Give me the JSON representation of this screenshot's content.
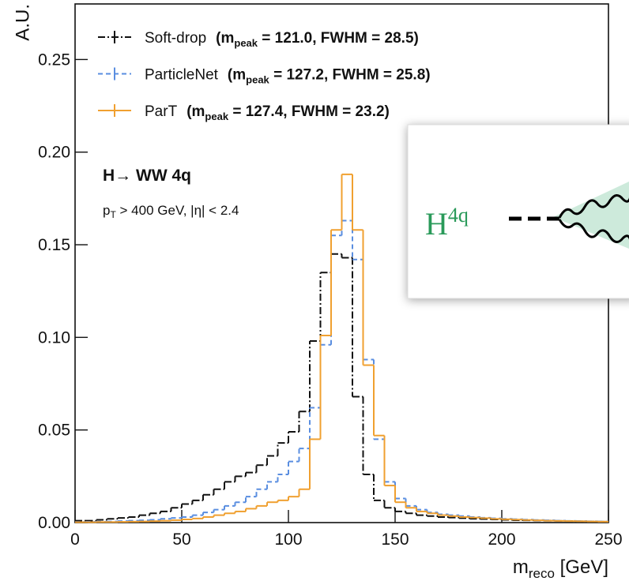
{
  "chart_data": {
    "type": "step-histogram",
    "ylabel": "A.U.",
    "xlabel": {
      "text": "m",
      "sub": "reco",
      "rest": " [GeV]"
    },
    "bins": [
      0,
      5,
      10,
      15,
      20,
      25,
      30,
      35,
      40,
      45,
      50,
      55,
      60,
      65,
      70,
      75,
      80,
      85,
      90,
      95,
      100,
      105,
      110,
      115,
      120,
      125,
      130,
      135,
      140,
      145,
      150,
      155,
      160,
      165,
      170,
      175,
      180,
      185,
      190,
      195,
      200,
      205,
      210,
      215,
      220,
      225,
      230,
      235,
      240,
      245,
      250
    ],
    "xlim": [
      0,
      250
    ],
    "xticks": [
      0,
      50,
      100,
      150,
      200,
      250
    ],
    "ylim": [
      0,
      0.28
    ],
    "yticks": [
      {
        "value": 0,
        "label": "0.00"
      },
      {
        "value": 0.05,
        "label": "0.05"
      },
      {
        "value": 0.1,
        "label": "0.10"
      },
      {
        "value": 0.15,
        "label": "0.15"
      },
      {
        "value": 0.2,
        "label": "0.20"
      },
      {
        "value": 0.25,
        "label": "0.25"
      }
    ],
    "annotations": [
      {
        "text": "H→  WW 4q"
      },
      {
        "text": "p",
        "sub": "T",
        "rest": " > 400 GeV,  |η| < 2.4"
      }
    ],
    "series": [
      {
        "name": "Soft-drop",
        "color": "#111111",
        "dash": "9,3,2,3",
        "stats": {
          "open": "(m",
          "sub": "peak",
          "rest": " = 121.0, FWHM = 28.5)"
        },
        "values": [
          0.001,
          0.001,
          0.0015,
          0.002,
          0.0025,
          0.003,
          0.004,
          0.005,
          0.006,
          0.008,
          0.01,
          0.012,
          0.015,
          0.018,
          0.022,
          0.025,
          0.027,
          0.031,
          0.036,
          0.043,
          0.049,
          0.06,
          0.098,
          0.135,
          0.145,
          0.143,
          0.068,
          0.026,
          0.012,
          0.008,
          0.006,
          0.005,
          0.004,
          0.0035,
          0.003,
          0.0027,
          0.0024,
          0.0021,
          0.0019,
          0.0017,
          0.0015,
          0.0013,
          0.0012,
          0.0011,
          0.001,
          0.0009,
          0.0008,
          0.0007,
          0.0006,
          0.0005
        ]
      },
      {
        "name": "ParticleNet",
        "color": "#5a8ee0",
        "dash": "6,4",
        "stats": {
          "open": "(m",
          "sub": "peak",
          "rest": " = 127.2, FWHM = 25.8)"
        },
        "values": [
          0.0003,
          0.0004,
          0.0005,
          0.0006,
          0.0008,
          0.001,
          0.0012,
          0.0015,
          0.002,
          0.0025,
          0.003,
          0.004,
          0.0055,
          0.007,
          0.009,
          0.011,
          0.014,
          0.018,
          0.022,
          0.026,
          0.033,
          0.04,
          0.062,
          0.096,
          0.155,
          0.163,
          0.142,
          0.088,
          0.045,
          0.022,
          0.013,
          0.009,
          0.007,
          0.0055,
          0.0045,
          0.004,
          0.0035,
          0.003,
          0.0026,
          0.0023,
          0.002,
          0.0018,
          0.0016,
          0.0014,
          0.0012,
          0.001,
          0.0009,
          0.0008,
          0.0007,
          0.0006
        ]
      },
      {
        "name": "ParT",
        "color": "#f0a030",
        "dash": "none",
        "stats": {
          "open": "(m",
          "sub": "peak",
          "rest": " = 127.4, FWHM = 23.2)"
        },
        "values": [
          0.0002,
          0.0002,
          0.0003,
          0.0003,
          0.0004,
          0.0005,
          0.0006,
          0.0008,
          0.001,
          0.0013,
          0.0017,
          0.0022,
          0.003,
          0.004,
          0.005,
          0.006,
          0.0075,
          0.009,
          0.011,
          0.012,
          0.014,
          0.018,
          0.045,
          0.101,
          0.158,
          0.188,
          0.158,
          0.085,
          0.047,
          0.02,
          0.011,
          0.008,
          0.006,
          0.005,
          0.004,
          0.0035,
          0.003,
          0.0027,
          0.0024,
          0.002,
          0.0018,
          0.0016,
          0.0014,
          0.0012,
          0.001,
          0.0009,
          0.0008,
          0.0007,
          0.0006,
          0.0005
        ]
      }
    ]
  },
  "inset": {
    "text": "H",
    "sup": "4q"
  }
}
